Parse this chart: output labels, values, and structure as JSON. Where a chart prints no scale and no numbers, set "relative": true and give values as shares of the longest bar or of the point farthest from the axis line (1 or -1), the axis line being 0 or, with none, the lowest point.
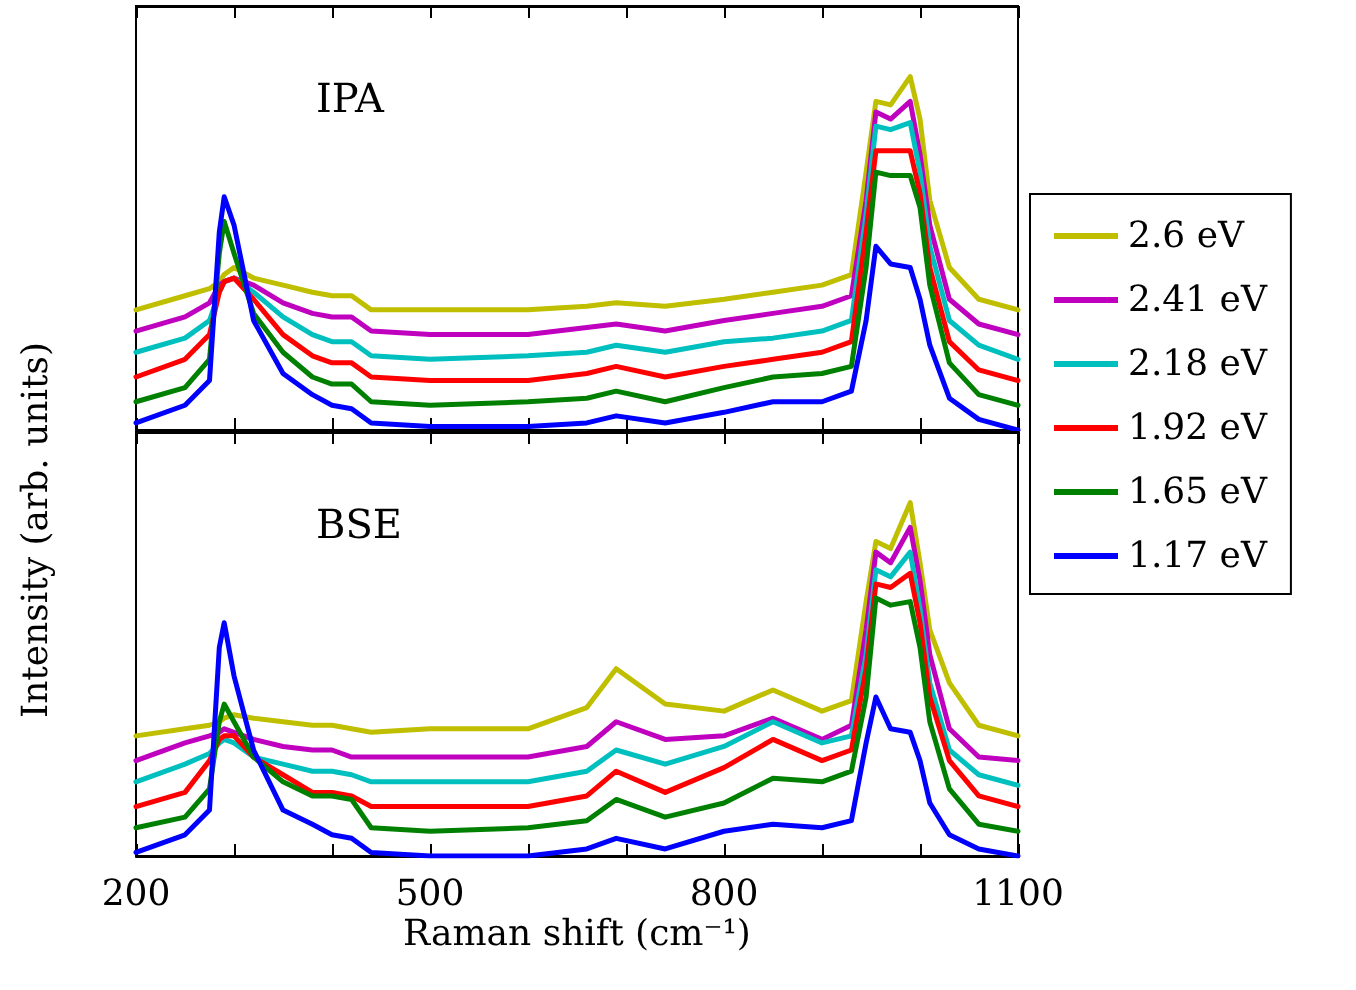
{
  "chart_data": [
    {
      "type": "line",
      "relative": true,
      "ylabel": "Intensity (arb. units)",
      "annotations": [
        "IPA"
      ],
      "legend": "right",
      "tick_labels": false,
      "xlim": [
        200,
        1100
      ],
      "xticks": [
        200,
        {
          "value": 300,
          "label": null
        },
        {
          "value": 400,
          "label": null
        },
        500,
        {
          "value": 600,
          "label": null
        },
        {
          "value": 700,
          "label": null
        },
        800,
        {
          "value": 900,
          "label": null
        },
        {
          "value": 1000,
          "label": null
        },
        1100
      ],
      "x": [
        200,
        250,
        275,
        285,
        290,
        300,
        320,
        350,
        380,
        400,
        420,
        440,
        500,
        600,
        660,
        690,
        740,
        800,
        850,
        900,
        930,
        945,
        955,
        970,
        990,
        1000,
        1010,
        1030,
        1060,
        1100
      ],
      "series": [
        {
          "name": "2.6 eV",
          "color": "#bfbf00",
          "values": [
            0.34,
            0.38,
            0.4,
            0.42,
            0.44,
            0.46,
            0.43,
            0.41,
            0.39,
            0.38,
            0.38,
            0.34,
            0.34,
            0.34,
            0.35,
            0.36,
            0.35,
            0.37,
            0.39,
            0.41,
            0.44,
            0.73,
            0.93,
            0.92,
            1,
            0.88,
            0.65,
            0.46,
            0.37,
            0.34
          ]
        },
        {
          "name": "2.41 eV",
          "color": "#bf00bf",
          "values": [
            0.28,
            0.32,
            0.36,
            0.41,
            0.42,
            0.43,
            0.41,
            0.36,
            0.33,
            0.32,
            0.32,
            0.28,
            0.27,
            0.27,
            0.29,
            0.3,
            0.28,
            0.31,
            0.33,
            0.35,
            0.38,
            0.65,
            0.9,
            0.88,
            0.93,
            0.78,
            0.58,
            0.37,
            0.3,
            0.27
          ]
        },
        {
          "name": "2.18 eV",
          "color": "#00bfbf",
          "values": [
            0.22,
            0.26,
            0.31,
            0.39,
            0.42,
            0.43,
            0.39,
            0.32,
            0.27,
            0.25,
            0.25,
            0.21,
            0.2,
            0.21,
            0.22,
            0.24,
            0.22,
            0.25,
            0.26,
            0.28,
            0.31,
            0.61,
            0.86,
            0.85,
            0.87,
            0.73,
            0.52,
            0.31,
            0.24,
            0.2
          ]
        },
        {
          "name": "1.92 eV",
          "color": "#ff0000",
          "values": [
            0.15,
            0.2,
            0.27,
            0.39,
            0.42,
            0.43,
            0.37,
            0.27,
            0.21,
            0.19,
            0.19,
            0.15,
            0.14,
            0.14,
            0.16,
            0.18,
            0.15,
            0.18,
            0.2,
            0.22,
            0.25,
            0.56,
            0.79,
            0.79,
            0.79,
            0.67,
            0.46,
            0.25,
            0.17,
            0.14
          ]
        },
        {
          "name": "1.65 eV",
          "color": "#008000",
          "values": [
            0.08,
            0.12,
            0.2,
            0.5,
            0.59,
            0.5,
            0.33,
            0.22,
            0.15,
            0.13,
            0.13,
            0.08,
            0.07,
            0.08,
            0.09,
            0.11,
            0.08,
            0.12,
            0.15,
            0.16,
            0.18,
            0.46,
            0.73,
            0.72,
            0.72,
            0.63,
            0.41,
            0.19,
            0.1,
            0.07
          ]
        },
        {
          "name": "1.17 eV",
          "color": "#0000ff",
          "values": [
            0.02,
            0.07,
            0.14,
            0.56,
            0.66,
            0.58,
            0.31,
            0.16,
            0.1,
            0.07,
            0.06,
            0.02,
            0.01,
            0.01,
            0.02,
            0.04,
            0.02,
            0.05,
            0.08,
            0.08,
            0.11,
            0.31,
            0.52,
            0.47,
            0.46,
            0.37,
            0.24,
            0.09,
            0.03,
            0
          ]
        }
      ]
    },
    {
      "type": "line",
      "relative": true,
      "xlabel": "Raman shift (cm⁻¹)",
      "annotations": [
        "BSE"
      ],
      "tick_labels": "x",
      "xlim": [
        200,
        1100
      ],
      "xticks": [
        200,
        {
          "value": 300,
          "label": null
        },
        {
          "value": 400,
          "label": null
        },
        500,
        {
          "value": 600,
          "label": null
        },
        {
          "value": 700,
          "label": null
        },
        800,
        {
          "value": 900,
          "label": null
        },
        {
          "value": 1000,
          "label": null
        },
        1100
      ],
      "x": [
        200,
        250,
        275,
        285,
        290,
        300,
        320,
        350,
        380,
        400,
        420,
        440,
        500,
        600,
        660,
        690,
        740,
        800,
        850,
        900,
        930,
        945,
        955,
        970,
        990,
        1000,
        1010,
        1030,
        1060,
        1100
      ],
      "series": [
        {
          "color": "#bfbf00",
          "values": [
            0.34,
            0.36,
            0.37,
            0.38,
            0.39,
            0.4,
            0.39,
            0.38,
            0.37,
            0.37,
            0.36,
            0.35,
            0.36,
            0.36,
            0.42,
            0.53,
            0.43,
            0.41,
            0.47,
            0.41,
            0.44,
            0.72,
            0.89,
            0.87,
            1,
            0.83,
            0.64,
            0.49,
            0.37,
            0.34
          ]
        },
        {
          "color": "#bf00bf",
          "values": [
            0.27,
            0.32,
            0.34,
            0.35,
            0.36,
            0.35,
            0.33,
            0.31,
            0.3,
            0.3,
            0.28,
            0.28,
            0.28,
            0.28,
            0.31,
            0.38,
            0.33,
            0.34,
            0.39,
            0.33,
            0.37,
            0.64,
            0.86,
            0.83,
            0.93,
            0.78,
            0.57,
            0.36,
            0.28,
            0.27
          ]
        },
        {
          "color": "#00bfbf",
          "values": [
            0.21,
            0.26,
            0.29,
            0.32,
            0.33,
            0.32,
            0.28,
            0.26,
            0.24,
            0.24,
            0.23,
            0.21,
            0.21,
            0.21,
            0.24,
            0.3,
            0.26,
            0.31,
            0.38,
            0.32,
            0.34,
            0.57,
            0.81,
            0.79,
            0.86,
            0.7,
            0.49,
            0.3,
            0.23,
            0.2
          ]
        },
        {
          "color": "#ff0000",
          "values": [
            0.14,
            0.18,
            0.27,
            0.33,
            0.34,
            0.34,
            0.28,
            0.23,
            0.18,
            0.18,
            0.17,
            0.14,
            0.14,
            0.14,
            0.17,
            0.24,
            0.18,
            0.25,
            0.33,
            0.27,
            0.3,
            0.53,
            0.77,
            0.76,
            0.8,
            0.66,
            0.45,
            0.27,
            0.17,
            0.14
          ]
        },
        {
          "color": "#008000",
          "values": [
            0.08,
            0.11,
            0.19,
            0.38,
            0.43,
            0.38,
            0.28,
            0.21,
            0.17,
            0.17,
            0.16,
            0.08,
            0.07,
            0.08,
            0.1,
            0.16,
            0.11,
            0.15,
            0.22,
            0.21,
            0.24,
            0.45,
            0.73,
            0.71,
            0.72,
            0.59,
            0.38,
            0.19,
            0.09,
            0.07
          ]
        },
        {
          "color": "#0000ff",
          "values": [
            0.01,
            0.06,
            0.13,
            0.59,
            0.66,
            0.51,
            0.3,
            0.13,
            0.09,
            0.06,
            0.05,
            0.01,
            0,
            0,
            0.02,
            0.05,
            0.02,
            0.07,
            0.09,
            0.08,
            0.1,
            0.32,
            0.45,
            0.36,
            0.35,
            0.27,
            0.15,
            0.06,
            0.02,
            0
          ]
        }
      ]
    }
  ]
}
